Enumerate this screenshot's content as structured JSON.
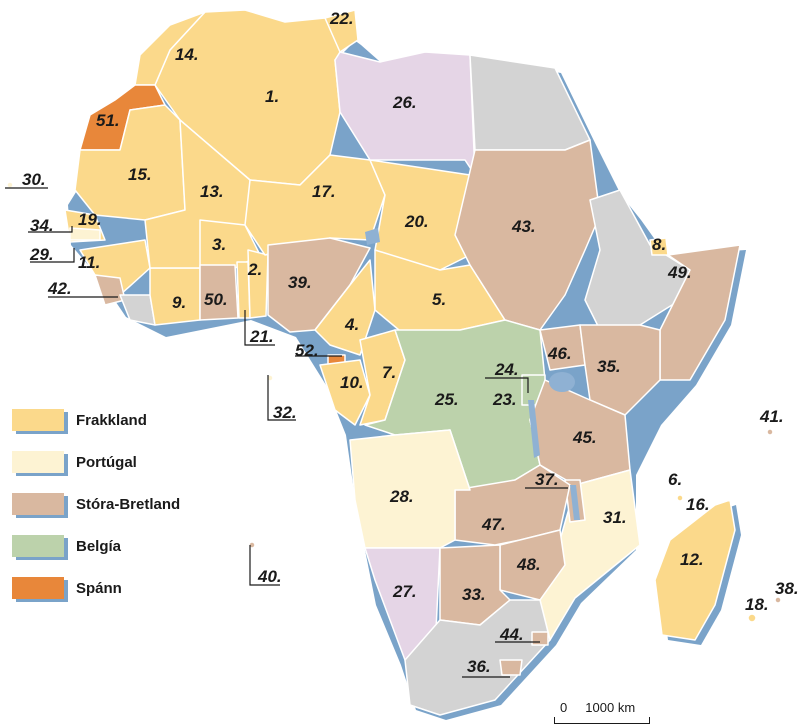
{
  "colors": {
    "france": "#fbd98b",
    "portugal": "#fdf3d3",
    "britain": "#d9b8a0",
    "belgium": "#bcd2ab",
    "spain": "#e8873a",
    "italy": "#e5d5e6",
    "independent": "#d3d3d3",
    "coast_shadow": "#7aa3c9",
    "lake": "#8fb1d3",
    "border": "#ffffff"
  },
  "legend": [
    {
      "label": "Frakkland",
      "color": "#fbd98b"
    },
    {
      "label": "Portúgal",
      "color": "#fdf3d3"
    },
    {
      "label": "Stóra-Bretland",
      "color": "#d9b8a0"
    },
    {
      "label": "Belgía",
      "color": "#bcd2ab"
    },
    {
      "label": "Spánn",
      "color": "#e8873a"
    }
  ],
  "scale": {
    "label": "0     1000 km"
  },
  "labels": [
    "1.",
    "2.",
    "3.",
    "4.",
    "5.",
    "6.",
    "7.",
    "8.",
    "9.",
    "10.",
    "11.",
    "12.",
    "13.",
    "14.",
    "15.",
    "16.",
    "17.",
    "18.",
    "19.",
    "20.",
    "21.",
    "22.",
    "23.",
    "24.",
    "25.",
    "26.",
    "27.",
    "28.",
    "29.",
    "30.",
    "31.",
    "32.",
    "33.",
    "34.",
    "35.",
    "36.",
    "37.",
    "38.",
    "39.",
    "40.",
    "41.",
    "42.",
    "43.",
    "44.",
    "45.",
    "46.",
    "47.",
    "48.",
    "49.",
    "50.",
    "51.",
    "52."
  ]
}
